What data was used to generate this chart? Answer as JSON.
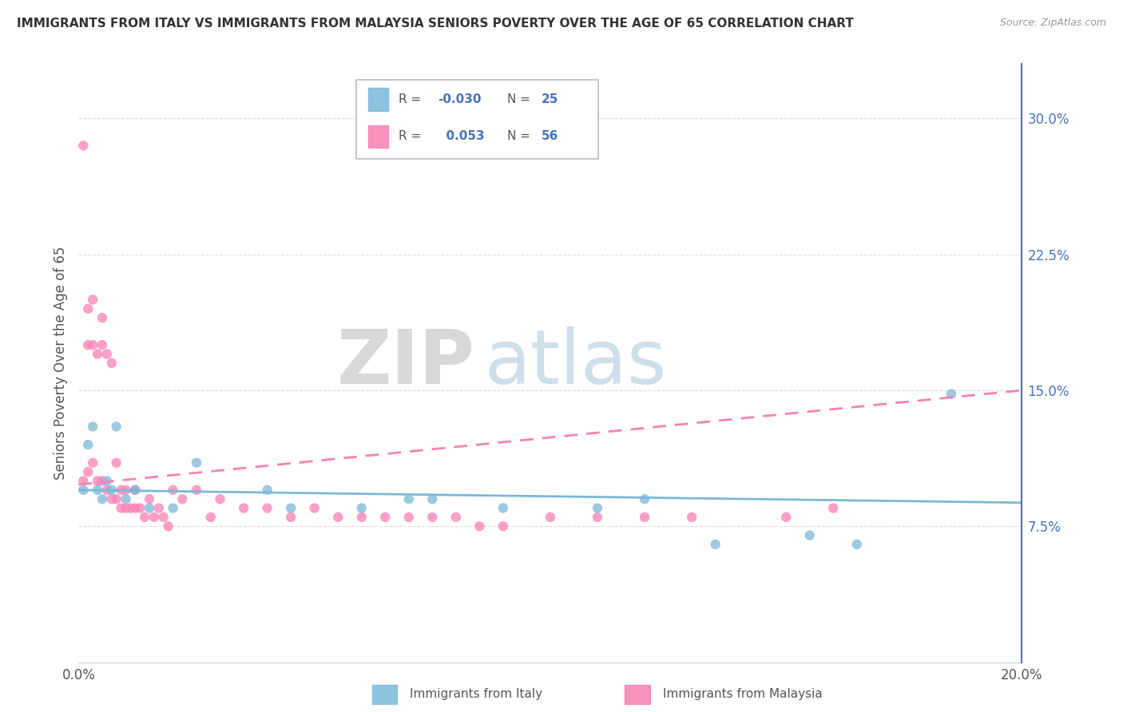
{
  "title": "IMMIGRANTS FROM ITALY VS IMMIGRANTS FROM MALAYSIA SENIORS POVERTY OVER THE AGE OF 65 CORRELATION CHART",
  "source": "Source: ZipAtlas.com",
  "ylabel": "Seniors Poverty Over the Age of 65",
  "xlim": [
    0.0,
    0.2
  ],
  "ylim": [
    0.0,
    0.33
  ],
  "xticks": [
    0.0,
    0.05,
    0.1,
    0.15,
    0.2
  ],
  "xticklabels": [
    "0.0%",
    "",
    "",
    "",
    "20.0%"
  ],
  "yticks_right": [
    0.075,
    0.15,
    0.225,
    0.3
  ],
  "yticklabels_right": [
    "7.5%",
    "15.0%",
    "22.5%",
    "30.0%"
  ],
  "italy_color": "#7ab8d9",
  "malaysia_color": "#f97fb5",
  "italy_R": -0.03,
  "italy_N": 25,
  "malaysia_R": 0.053,
  "malaysia_N": 56,
  "watermark_zip": "ZIP",
  "watermark_atlas": "atlas",
  "italy_scatter_x": [
    0.001,
    0.002,
    0.003,
    0.004,
    0.005,
    0.006,
    0.007,
    0.008,
    0.01,
    0.012,
    0.015,
    0.02,
    0.025,
    0.04,
    0.045,
    0.06,
    0.07,
    0.075,
    0.09,
    0.11,
    0.12,
    0.135,
    0.155,
    0.165,
    0.185
  ],
  "italy_scatter_y": [
    0.095,
    0.12,
    0.13,
    0.095,
    0.09,
    0.1,
    0.095,
    0.13,
    0.09,
    0.095,
    0.085,
    0.085,
    0.11,
    0.095,
    0.085,
    0.085,
    0.09,
    0.09,
    0.085,
    0.085,
    0.09,
    0.065,
    0.07,
    0.065,
    0.148
  ],
  "malaysia_scatter_x": [
    0.001,
    0.001,
    0.002,
    0.002,
    0.002,
    0.003,
    0.003,
    0.003,
    0.004,
    0.004,
    0.005,
    0.005,
    0.005,
    0.006,
    0.006,
    0.007,
    0.007,
    0.008,
    0.008,
    0.009,
    0.009,
    0.01,
    0.01,
    0.011,
    0.012,
    0.012,
    0.013,
    0.014,
    0.015,
    0.016,
    0.017,
    0.018,
    0.019,
    0.02,
    0.022,
    0.025,
    0.028,
    0.03,
    0.035,
    0.04,
    0.045,
    0.05,
    0.055,
    0.06,
    0.065,
    0.07,
    0.075,
    0.08,
    0.085,
    0.09,
    0.1,
    0.11,
    0.12,
    0.13,
    0.15,
    0.16
  ],
  "malaysia_scatter_y": [
    0.285,
    0.1,
    0.195,
    0.175,
    0.105,
    0.2,
    0.175,
    0.11,
    0.17,
    0.1,
    0.19,
    0.175,
    0.1,
    0.17,
    0.095,
    0.165,
    0.09,
    0.11,
    0.09,
    0.095,
    0.085,
    0.095,
    0.085,
    0.085,
    0.095,
    0.085,
    0.085,
    0.08,
    0.09,
    0.08,
    0.085,
    0.08,
    0.075,
    0.095,
    0.09,
    0.095,
    0.08,
    0.09,
    0.085,
    0.085,
    0.08,
    0.085,
    0.08,
    0.08,
    0.08,
    0.08,
    0.08,
    0.08,
    0.075,
    0.075,
    0.08,
    0.08,
    0.08,
    0.08,
    0.08,
    0.085
  ],
  "italy_line_x": [
    0.0,
    0.2
  ],
  "italy_line_y": [
    0.095,
    0.088
  ],
  "malaysia_line_x": [
    0.0,
    0.2
  ],
  "malaysia_line_y": [
    0.098,
    0.15
  ]
}
